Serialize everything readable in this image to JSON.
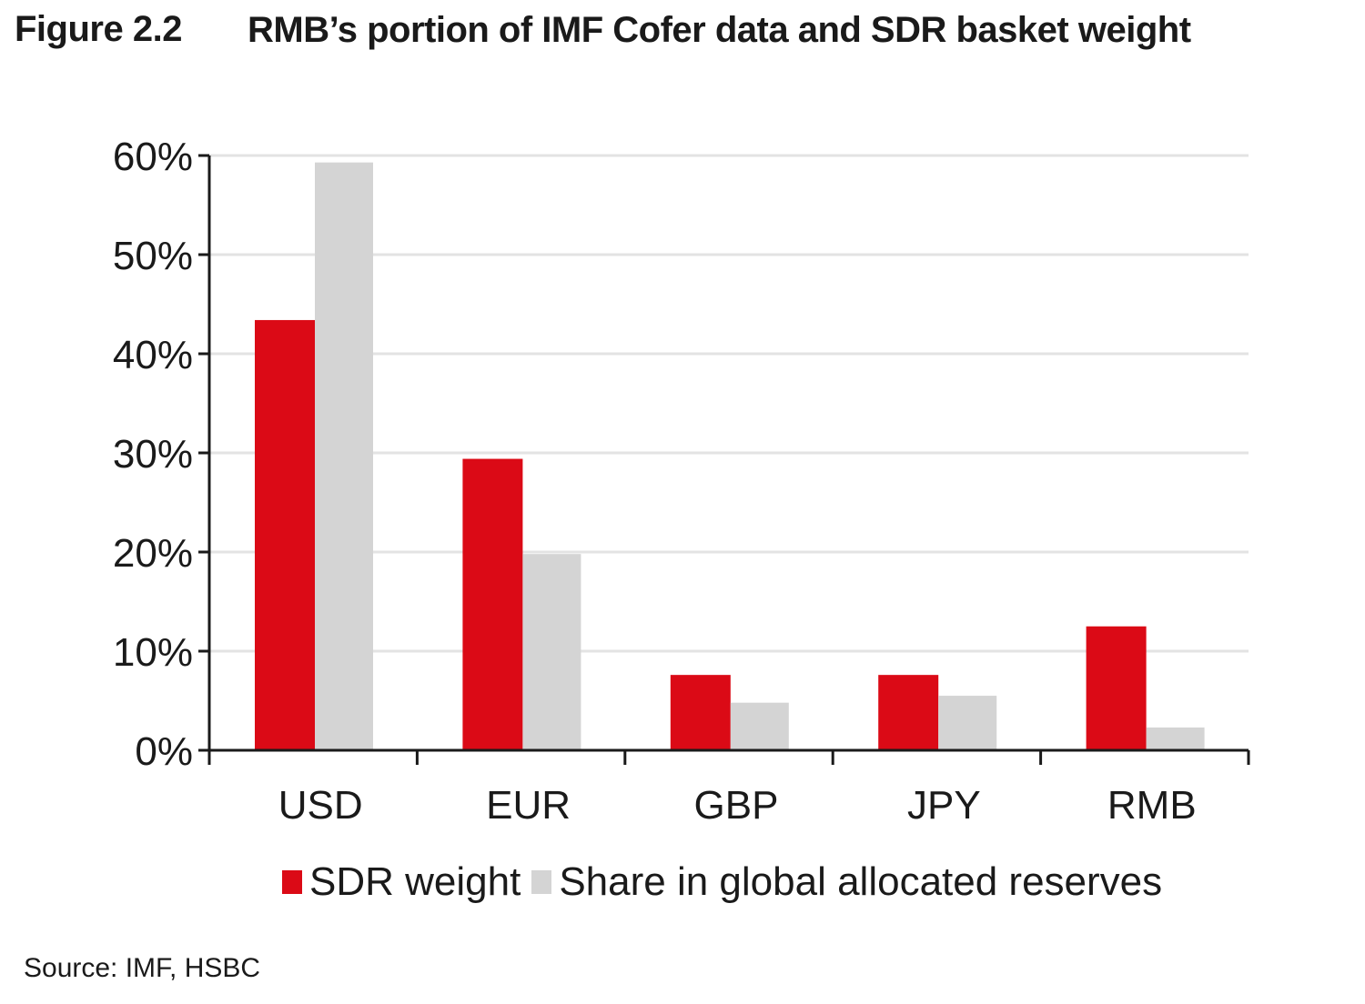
{
  "figure": {
    "label": "Figure 2.2",
    "title": "RMB’s portion of IMF Cofer data and SDR basket weight",
    "source": "Source: IMF, HSBC"
  },
  "chart_data": {
    "type": "bar",
    "title": "RMB’s portion of IMF Cofer data and SDR basket weight",
    "xlabel": "",
    "ylabel": "",
    "categories": [
      "USD",
      "EUR",
      "GBP",
      "JPY",
      "RMB"
    ],
    "series": [
      {
        "name": "SDR weight",
        "color": "#db0a16",
        "values": [
          43.4,
          29.4,
          7.6,
          7.6,
          12.5
        ]
      },
      {
        "name": "Share in global allocated reserves",
        "color": "#d4d4d4",
        "values": [
          59.3,
          19.8,
          4.8,
          5.5,
          2.3
        ]
      }
    ],
    "ylim": [
      0,
      60
    ],
    "yticks": [
      0,
      10,
      20,
      30,
      40,
      50,
      60
    ],
    "ytick_labels": [
      "0%",
      "10%",
      "20%",
      "30%",
      "40%",
      "50%",
      "60%"
    ],
    "grid": true,
    "legend_position": "bottom"
  }
}
